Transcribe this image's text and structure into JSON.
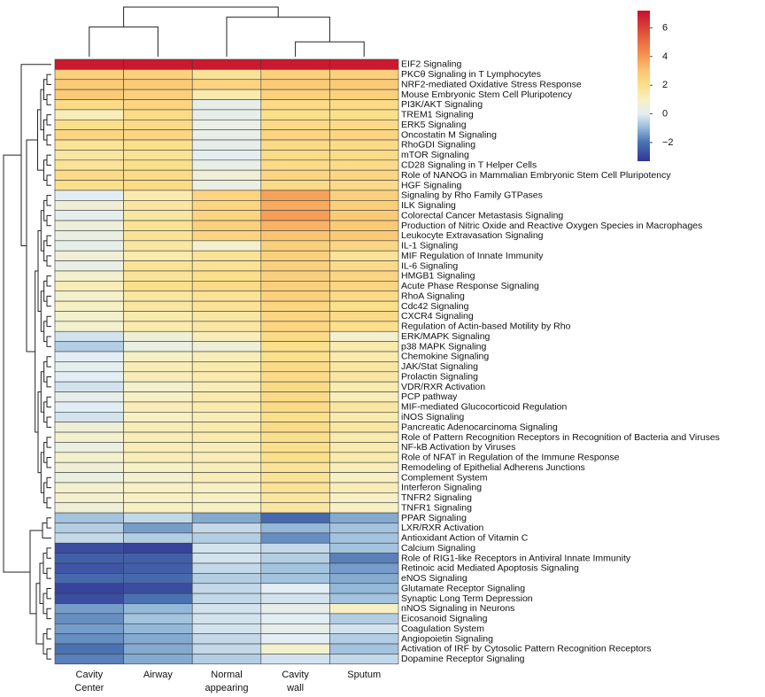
{
  "chart_data": {
    "type": "heatmap",
    "title": "",
    "xlabel": "",
    "ylabel": "",
    "columns": [
      {
        "key": "cc",
        "label_lines": [
          "Cavity",
          "Center"
        ]
      },
      {
        "key": "aw",
        "label_lines": [
          "Airway"
        ]
      },
      {
        "key": "na",
        "label_lines": [
          "Normal",
          "appearing"
        ]
      },
      {
        "key": "cw",
        "label_lines": [
          "Cavity",
          "wall"
        ]
      },
      {
        "key": "sp",
        "label_lines": [
          "Sputum"
        ]
      }
    ],
    "rows": [
      {
        "label": "EIF2 Signaling",
        "values": [
          7,
          7,
          7,
          7,
          7
        ]
      },
      {
        "label": "PKCθ Signaling in T Lymphocytes",
        "values": [
          2.6,
          2.6,
          1.8,
          2.6,
          2.6
        ]
      },
      {
        "label": "NRF2-mediated Oxidative Stress Response",
        "values": [
          2.8,
          2.8,
          2.4,
          2.8,
          2.8
        ]
      },
      {
        "label": "Mouse Embryonic Stem Cell Pluripotency",
        "values": [
          2.8,
          2.6,
          1.4,
          2.6,
          2.6
        ]
      },
      {
        "label": "PI3K/AKT Signaling",
        "values": [
          2.2,
          2.4,
          0.2,
          2.2,
          2.2
        ]
      },
      {
        "label": "TREM1 Signaling",
        "values": [
          1.2,
          2.2,
          0.2,
          2.0,
          2.0
        ]
      },
      {
        "label": "ERK5 Signaling",
        "values": [
          2.0,
          2.2,
          0.3,
          2.2,
          2.2
        ]
      },
      {
        "label": "Oncostatin M Signaling",
        "values": [
          2.4,
          2.4,
          0.3,
          2.4,
          2.4
        ]
      },
      {
        "label": "RhoGDI Signaling",
        "values": [
          1.8,
          2.0,
          0.2,
          2.2,
          2.2
        ]
      },
      {
        "label": "mTOR Signaling",
        "values": [
          1.6,
          1.8,
          0.1,
          2.2,
          2.2
        ]
      },
      {
        "label": "CD28 Signaling in T Helper Cells",
        "values": [
          1.8,
          2.0,
          0.3,
          2.2,
          2.2
        ]
      },
      {
        "label": "Role of NANOG in Mammalian Embryonic Stem Cell Pluripotency",
        "values": [
          2.2,
          2.2,
          0.6,
          2.4,
          2.4
        ]
      },
      {
        "label": "HGF Signaling",
        "values": [
          2.0,
          2.2,
          0.4,
          2.2,
          2.2
        ]
      },
      {
        "label": "Signaling by Rho Family GTPases",
        "values": [
          0.0,
          1.4,
          2.4,
          3.8,
          2.6
        ]
      },
      {
        "label": "ILK Signaling",
        "values": [
          0.6,
          1.6,
          2.4,
          3.6,
          2.6
        ]
      },
      {
        "label": "Colorectal Cancer Metastasis Signaling",
        "values": [
          0.1,
          1.6,
          2.4,
          3.9,
          2.8
        ]
      },
      {
        "label": "Production of Nitric Oxide and Reactive Oxygen Species in Macrophages",
        "values": [
          0.5,
          1.8,
          2.6,
          3.4,
          2.8
        ]
      },
      {
        "label": "Leukocyte Extravasation Signaling",
        "values": [
          0.4,
          1.8,
          2.4,
          3.0,
          2.8
        ]
      },
      {
        "label": "IL-1 Signaling",
        "values": [
          0.2,
          1.6,
          0.8,
          2.6,
          2.4
        ]
      },
      {
        "label": "MIF Regulation of Innate Immunity",
        "values": [
          0.6,
          1.4,
          1.8,
          2.6,
          1.8
        ]
      },
      {
        "label": "IL-6 Signaling",
        "values": [
          0.3,
          1.8,
          1.8,
          2.6,
          2.2
        ]
      },
      {
        "label": "HMGB1 Signaling",
        "values": [
          0.8,
          1.8,
          2.0,
          2.6,
          2.4
        ]
      },
      {
        "label": "Acute Phase Response Signaling",
        "values": [
          1.2,
          2.0,
          2.2,
          2.6,
          2.4
        ]
      },
      {
        "label": "RhoA Signaling",
        "values": [
          0.8,
          1.6,
          1.8,
          2.6,
          2.2
        ]
      },
      {
        "label": "Cdc42 Signaling",
        "values": [
          1.0,
          1.6,
          1.8,
          2.4,
          2.0
        ]
      },
      {
        "label": "CXCR4 Signaling",
        "values": [
          0.8,
          1.4,
          1.6,
          2.4,
          2.2
        ]
      },
      {
        "label": "Regulation of Actin-based Motility by Rho",
        "values": [
          0.8,
          1.4,
          1.6,
          2.4,
          2.0
        ]
      },
      {
        "label": "ERK/MAPK Signaling",
        "values": [
          -0.2,
          0.6,
          1.2,
          2.2,
          0.8
        ]
      },
      {
        "label": "p38 MAPK Signaling",
        "values": [
          -0.6,
          0.4,
          0.6,
          2.0,
          1.4
        ]
      },
      {
        "label": "Chemokine Signaling",
        "values": [
          0.0,
          1.0,
          1.2,
          2.0,
          1.4
        ]
      },
      {
        "label": "JAK/Stat Signaling",
        "values": [
          0.1,
          1.2,
          1.4,
          2.2,
          1.6
        ]
      },
      {
        "label": "Prolactin Signaling",
        "values": [
          0.0,
          1.2,
          1.4,
          2.2,
          1.6
        ]
      },
      {
        "label": "VDR/RXR Activation",
        "values": [
          -0.2,
          0.8,
          1.2,
          2.2,
          1.4
        ]
      },
      {
        "label": "PCP pathway",
        "values": [
          0.2,
          1.0,
          1.4,
          2.2,
          1.2
        ]
      },
      {
        "label": "MIF-mediated Glucocorticoid Regulation",
        "values": [
          0.0,
          1.2,
          1.4,
          2.2,
          1.6
        ]
      },
      {
        "label": "iNOS Signaling",
        "values": [
          -0.2,
          1.0,
          1.2,
          2.0,
          1.4
        ]
      },
      {
        "label": "Pancreatic Adenocarcinoma Signaling",
        "values": [
          0.6,
          1.2,
          1.4,
          2.2,
          1.6
        ]
      },
      {
        "label": "Role of Pattern Recognition Receptors in Recognition of Bacteria and Viruses",
        "values": [
          0.8,
          1.2,
          1.4,
          2.0,
          1.4
        ]
      },
      {
        "label": "NF-kB Activation by Viruses",
        "values": [
          0.4,
          1.2,
          1.2,
          2.0,
          1.4
        ]
      },
      {
        "label": "Role of NFAT in Regulation of the Immune Response",
        "values": [
          0.8,
          1.2,
          1.2,
          2.0,
          1.4
        ]
      },
      {
        "label": "Remodeling of Epithelial Adherens Junctions",
        "values": [
          0.6,
          1.0,
          1.2,
          1.8,
          1.2
        ]
      },
      {
        "label": "Complement System",
        "values": [
          0.4,
          0.8,
          1.2,
          1.8,
          1.0
        ]
      },
      {
        "label": "Interferon Signaling",
        "values": [
          0.8,
          1.0,
          1.0,
          1.8,
          1.2
        ]
      },
      {
        "label": "TNFR2 Signaling",
        "values": [
          0.8,
          1.0,
          1.0,
          1.6,
          1.0
        ]
      },
      {
        "label": "TNFR1 Signaling",
        "values": [
          0.6,
          1.0,
          1.0,
          1.6,
          1.0
        ]
      },
      {
        "label": "PPAR Signaling",
        "values": [
          -0.8,
          -0.4,
          -1.2,
          -2.2,
          -1.2
        ]
      },
      {
        "label": "LXR/RXR Activation",
        "values": [
          -0.6,
          -1.4,
          -0.4,
          -1.0,
          -0.8
        ]
      },
      {
        "label": "Antioxidant Action of Vitamin C",
        "values": [
          -0.4,
          -0.6,
          -0.6,
          -1.6,
          -0.8
        ]
      },
      {
        "label": "Calcium Signaling",
        "values": [
          -2.8,
          -3.0,
          -0.2,
          -0.4,
          -0.8
        ]
      },
      {
        "label": "Role of RIG1-like Receptors in Antiviral Innate Immunity",
        "values": [
          -2.4,
          -2.4,
          -0.2,
          -0.6,
          -1.8
        ]
      },
      {
        "label": "Retinoic acid Mediated Apoptosis Signaling",
        "values": [
          -2.6,
          -2.4,
          -0.4,
          -0.8,
          -1.4
        ]
      },
      {
        "label": "eNOS Signaling",
        "values": [
          -2.2,
          -2.2,
          -0.6,
          -0.8,
          -1.2
        ]
      },
      {
        "label": "Glutamate Receptor Signaling",
        "values": [
          -3.0,
          -2.8,
          -0.4,
          0.0,
          -1.0
        ]
      },
      {
        "label": "Synaptic Long Term Depression",
        "values": [
          -2.8,
          -2.0,
          -0.4,
          -0.2,
          -0.8
        ]
      },
      {
        "label": "nNOS Signaling in Neurons",
        "values": [
          -1.4,
          -1.0,
          -0.2,
          0.2,
          1.0
        ]
      },
      {
        "label": "Eicosanoid Signaling",
        "values": [
          -1.6,
          -0.8,
          -0.2,
          0.0,
          -0.6
        ]
      },
      {
        "label": "Coagulation System",
        "values": [
          -1.4,
          -1.0,
          -0.2,
          0.2,
          -0.2
        ]
      },
      {
        "label": "Angiopoietin Signaling",
        "values": [
          -1.6,
          -1.2,
          -0.4,
          0.0,
          -0.6
        ]
      },
      {
        "label": "Activation of IRF by Cytosolic Pattern Recognition Receptors",
        "values": [
          -2.0,
          -1.2,
          -0.4,
          0.8,
          -0.8
        ]
      },
      {
        "label": "Dopamine Receptor Signaling",
        "values": [
          -1.8,
          -1.2,
          -0.6,
          -0.2,
          -0.4
        ]
      }
    ],
    "color_scale": {
      "range": [
        -3.3,
        7.2
      ],
      "stops": [
        {
          "value": -3.3,
          "color": "#313695"
        },
        {
          "value": -2.0,
          "color": "#4a72b2"
        },
        {
          "value": -1.0,
          "color": "#93b8d8"
        },
        {
          "value": 0.0,
          "color": "#e3eef4"
        },
        {
          "value": 1.0,
          "color": "#f7f0c4"
        },
        {
          "value": 2.0,
          "color": "#fbe08c"
        },
        {
          "value": 3.0,
          "color": "#fbc572"
        },
        {
          "value": 4.0,
          "color": "#f59854"
        },
        {
          "value": 5.5,
          "color": "#e25a3a"
        },
        {
          "value": 7.2,
          "color": "#c8102e"
        }
      ],
      "ticks": [
        -2,
        0,
        2,
        4,
        6
      ]
    },
    "column_dendrogram": [
      {
        "left": "cc",
        "right": "aw",
        "height": 0.6,
        "root": false
      },
      {
        "left": "cw",
        "right": "sp",
        "height": 0.3,
        "root": false
      },
      {
        "left": "na",
        "right": "node-cwsp",
        "height": 0.8,
        "root": false
      },
      {
        "left": "node-ccaw",
        "right": "node-rest",
        "height": 1.0,
        "root": true
      }
    ],
    "legend_position": "top-right",
    "grid": true
  }
}
